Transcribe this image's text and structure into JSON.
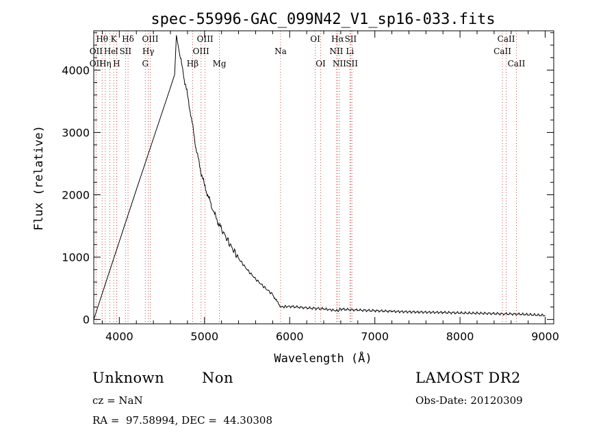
{
  "chart_data": {
    "type": "line",
    "title": "spec-55996-GAC_099N42_V1_sp16-033.fits",
    "xlabel": "Wavelength (Å)",
    "ylabel": "Flux (relative)",
    "xlim": [
      3700,
      9100
    ],
    "ylim": [
      -70,
      4630
    ],
    "x_ticks": [
      4000,
      5000,
      6000,
      7000,
      8000,
      9000
    ],
    "y_ticks": [
      0,
      1000,
      2000,
      3000,
      4000
    ],
    "grid": false,
    "series": [
      {
        "x": [
          3700,
          3850,
          4000,
          4200,
          4400,
          4600,
          4650,
          4670,
          4700,
          4750,
          4800,
          4850,
          4900,
          4950,
          5000,
          5050,
          5100,
          5150,
          5200,
          5300,
          5400,
          5500,
          5600,
          5700,
          5800,
          5850,
          5900,
          6000,
          6200,
          6400,
          6560,
          6600,
          6800,
          7000,
          7200,
          7500,
          7800,
          8000,
          8300,
          8500,
          8700,
          9000
        ],
        "y": [
          0,
          630,
          1250,
          2080,
          2900,
          3720,
          3930,
          4560,
          4320,
          3950,
          3600,
          3200,
          2750,
          2420,
          2150,
          1950,
          1750,
          1580,
          1450,
          1200,
          980,
          800,
          650,
          520,
          400,
          290,
          200,
          210,
          185,
          170,
          140,
          165,
          150,
          140,
          130,
          118,
          112,
          105,
          98,
          90,
          85,
          65
        ]
      }
    ],
    "lines": [
      {
        "label": "Hθ",
        "x": 3798,
        "row": 1
      },
      {
        "label": "K",
        "x": 3934,
        "row": 1
      },
      {
        "label": "Hδ",
        "x": 4102,
        "row": 1
      },
      {
        "label": "OIII",
        "x": 4363,
        "row": 1
      },
      {
        "label": "OIII",
        "x": 5007,
        "row": 1
      },
      {
        "label": "OI",
        "x": 6300,
        "row": 1
      },
      {
        "label": "Hα",
        "x": 6563,
        "row": 1
      },
      {
        "label": "SII",
        "x": 6716,
        "row": 1
      },
      {
        "label": "CaII",
        "x": 8542,
        "row": 1
      },
      {
        "label": "OII",
        "x": 3727,
        "row": 2
      },
      {
        "label": "He",
        "x": 3889,
        "row": 2
      },
      {
        "label": "I",
        "x": 3970,
        "row": 2
      },
      {
        "label": "SII",
        "x": 4072,
        "row": 2
      },
      {
        "label": "Hγ",
        "x": 4340,
        "row": 2
      },
      {
        "label": "OIII",
        "x": 4959,
        "row": 2
      },
      {
        "label": "Na",
        "x": 5893,
        "row": 2
      },
      {
        "label": "NII",
        "x": 6548,
        "row": 2
      },
      {
        "label": "Li",
        "x": 6708,
        "row": 2
      },
      {
        "label": "CaII",
        "x": 8498,
        "row": 2
      },
      {
        "label": "OII",
        "x": 3727,
        "row": 3
      },
      {
        "label": "Hη",
        "x": 3835,
        "row": 3
      },
      {
        "label": "H",
        "x": 3968,
        "row": 3
      },
      {
        "label": "G",
        "x": 4305,
        "row": 3
      },
      {
        "label": "Hβ",
        "x": 4861,
        "row": 3
      },
      {
        "label": "Mg",
        "x": 5175,
        "row": 3
      },
      {
        "label": "OI",
        "x": 6364,
        "row": 3
      },
      {
        "label": "NII",
        "x": 6584,
        "row": 3
      },
      {
        "label": "SII",
        "x": 6731,
        "row": 3
      },
      {
        "label": "CaII",
        "x": 8662,
        "row": 3
      }
    ]
  },
  "info": {
    "classification": "Unknown",
    "subclass": "Non",
    "survey": "LAMOST DR2",
    "redshift_line": "cz = NaN",
    "obs_date_line": "Obs-Date: 20120309",
    "coords_line": "RA =  97.58994, DEC =  44.30308"
  }
}
